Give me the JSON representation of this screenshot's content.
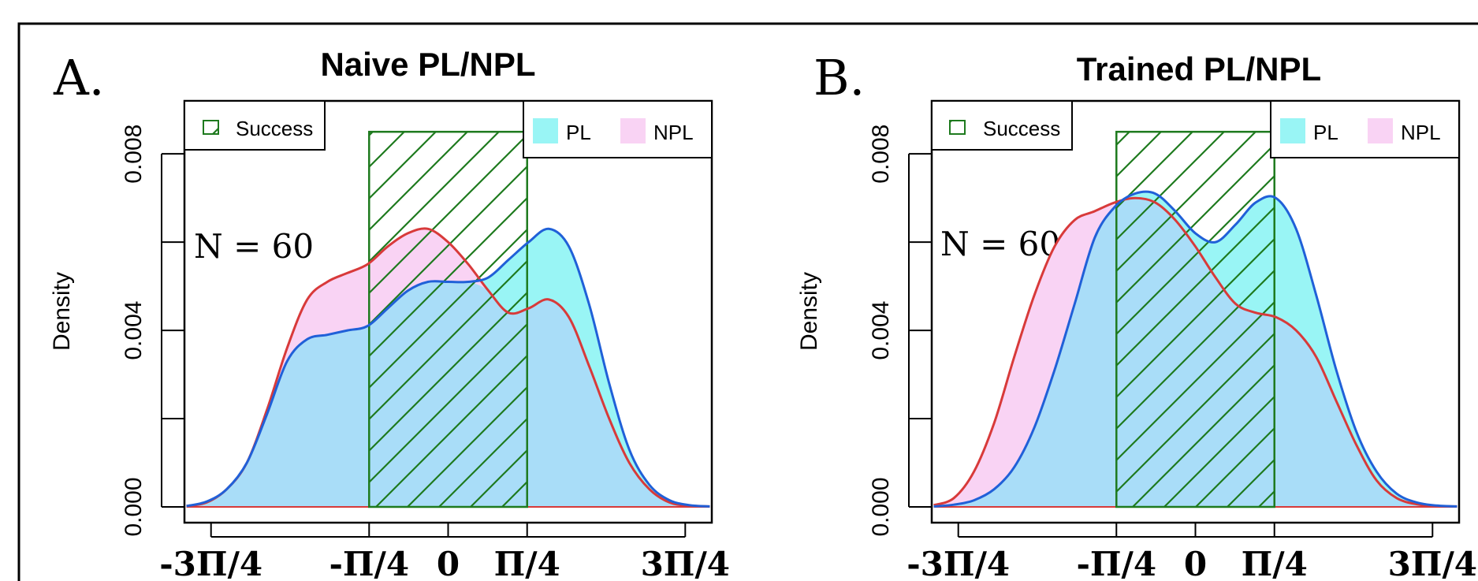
{
  "colors": {
    "pl_fill": "#99F5F5",
    "npl_fill": "#F9D3F4",
    "overlap_fill": "#A9DDF8",
    "pl_line": "#2060D8",
    "npl_line": "#D83A3A",
    "success": "#1E7A1E"
  },
  "chart_data": [
    {
      "type": "area",
      "panel_label": "A.",
      "title": "Naive PL/NPL",
      "ylabel": "Density",
      "xlabel": "",
      "ylim": [
        0,
        0.0092
      ],
      "xlim": [
        -2.62,
        2.62
      ],
      "yticks": [
        0.0,
        0.002,
        0.004,
        0.006,
        0.008
      ],
      "ytick_labels": [
        "0.000",
        "",
        "0.004",
        "",
        "0.008"
      ],
      "xticks": [
        -2.356,
        -0.785,
        0,
        0.785,
        2.356
      ],
      "xtick_labels": [
        "-3Π/4",
        "-Π/4",
        "0",
        "Π/4",
        "3Π/4"
      ],
      "annotation": "N = 60",
      "legend": {
        "success_label": "Success",
        "pl_label": "PL",
        "npl_label": "NPL"
      },
      "success_region": {
        "x": [
          -0.785,
          0.785
        ],
        "height": 0.0085
      },
      "x": [
        -2.6,
        -2.4,
        -2.2,
        -2.0,
        -1.8,
        -1.6,
        -1.4,
        -1.2,
        -1.0,
        -0.8,
        -0.6,
        -0.4,
        -0.2,
        0.0,
        0.2,
        0.4,
        0.6,
        0.8,
        1.0,
        1.2,
        1.4,
        1.6,
        1.8,
        2.0,
        2.2,
        2.4,
        2.6
      ],
      "series": [
        {
          "name": "PL",
          "values": [
            2e-05,
            0.00012,
            0.0004,
            0.001,
            0.0021,
            0.0033,
            0.0038,
            0.0039,
            0.004,
            0.0041,
            0.0045,
            0.0049,
            0.0051,
            0.0051,
            0.0051,
            0.0052,
            0.0056,
            0.006,
            0.0063,
            0.0059,
            0.0046,
            0.0028,
            0.0013,
            0.0005,
            0.00015,
            4e-05,
            1e-05
          ]
        },
        {
          "name": "NPL",
          "values": [
            2e-05,
            0.0001,
            0.0004,
            0.001,
            0.0022,
            0.0036,
            0.0047,
            0.0051,
            0.0053,
            0.0055,
            0.0059,
            0.0062,
            0.0063,
            0.006,
            0.0055,
            0.0049,
            0.0044,
            0.0045,
            0.0047,
            0.0043,
            0.0032,
            0.002,
            0.001,
            0.0004,
            0.0001,
            3e-05,
            1e-05
          ]
        }
      ]
    },
    {
      "type": "area",
      "panel_label": "B.",
      "title": "Trained PL/NPL",
      "ylabel": "Density",
      "xlabel": "",
      "ylim": [
        0,
        0.0092
      ],
      "xlim": [
        -2.62,
        2.62
      ],
      "yticks": [
        0.0,
        0.002,
        0.004,
        0.006,
        0.008
      ],
      "ytick_labels": [
        "0.000",
        "",
        "0.004",
        "",
        "0.008"
      ],
      "xticks": [
        -2.356,
        -0.785,
        0,
        0.785,
        2.356
      ],
      "xtick_labels": [
        "-3Π/4",
        "-Π/4",
        "0",
        "Π/4",
        "3Π/4"
      ],
      "annotation": "N = 60",
      "legend": {
        "success_label": "Success",
        "pl_label": "PL",
        "npl_label": "NPL"
      },
      "success_region": {
        "x": [
          -0.785,
          0.785
        ],
        "height": 0.0085
      },
      "x": [
        -2.6,
        -2.4,
        -2.2,
        -2.0,
        -1.8,
        -1.6,
        -1.4,
        -1.2,
        -1.0,
        -0.8,
        -0.6,
        -0.4,
        -0.2,
        0.0,
        0.2,
        0.4,
        0.6,
        0.8,
        1.0,
        1.2,
        1.4,
        1.6,
        1.8,
        2.0,
        2.2,
        2.4,
        2.6
      ],
      "series": [
        {
          "name": "PL",
          "values": [
            1e-05,
            5e-05,
            0.00015,
            0.0004,
            0.0009,
            0.0018,
            0.0031,
            0.0046,
            0.0061,
            0.0068,
            0.0071,
            0.0071,
            0.0067,
            0.0062,
            0.006,
            0.0064,
            0.0069,
            0.007,
            0.0063,
            0.0048,
            0.0031,
            0.0017,
            0.0008,
            0.0003,
            0.0001,
            3e-05,
            1e-05
          ]
        },
        {
          "name": "NPL",
          "values": [
            4e-05,
            0.0002,
            0.0008,
            0.0019,
            0.0034,
            0.0048,
            0.0059,
            0.0065,
            0.0067,
            0.0069,
            0.007,
            0.0069,
            0.0065,
            0.0059,
            0.0052,
            0.0046,
            0.0044,
            0.0043,
            0.004,
            0.0034,
            0.0024,
            0.0014,
            0.0006,
            0.0002,
            6e-05,
            2e-05,
            1e-05
          ]
        }
      ]
    }
  ]
}
